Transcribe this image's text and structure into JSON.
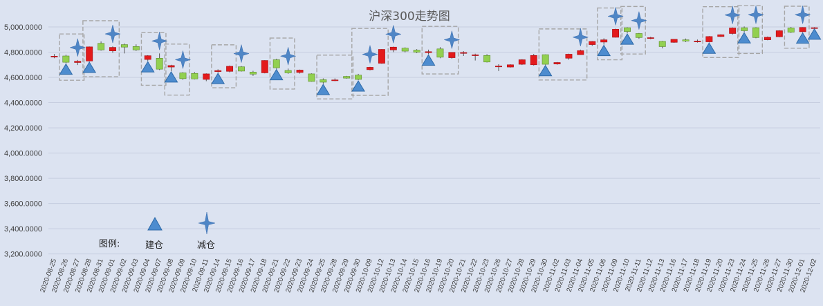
{
  "chart_data": {
    "type": "candlestick",
    "title": "沪深300走势图",
    "ylim": [
      3200,
      5050
    ],
    "yticks": [
      "5,000.0000",
      "4,800.0000",
      "4,600.0000",
      "4,400.0000",
      "4,200.0000",
      "4,000.0000",
      "3,800.0000",
      "3,600.0000",
      "3,400.0000",
      "3,200.0000"
    ],
    "ytick_values": [
      5000,
      4800,
      4600,
      4400,
      4200,
      4000,
      3800,
      3600,
      3400,
      3200
    ],
    "grid": true,
    "colors": {
      "up": "#e31a1c",
      "down": "#92d050",
      "up_edge": "#a50f15",
      "down_edge": "#5c8a2a",
      "marker": "#4d8ccf"
    },
    "categories": [
      "2020-08-25",
      "2020-08-26",
      "2020-08-27",
      "2020-08-28",
      "2020-08-31",
      "2020-09-01",
      "2020-09-02",
      "2020-09-03",
      "2020-09-04",
      "2020-09-07",
      "2020-09-08",
      "2020-09-09",
      "2020-09-10",
      "2020-09-11",
      "2020-09-14",
      "2020-09-15",
      "2020-09-16",
      "2020-09-17",
      "2020-09-18",
      "2020-09-21",
      "2020-09-22",
      "2020-09-23",
      "2020-09-24",
      "2020-09-25",
      "2020-09-28",
      "2020-09-29",
      "2020-09-30",
      "2020-10-09",
      "2020-10-12",
      "2020-10-13",
      "2020-10-14",
      "2020-10-15",
      "2020-10-16",
      "2020-10-19",
      "2020-10-20",
      "2020-10-21",
      "2020-10-22",
      "2020-10-23",
      "2020-10-26",
      "2020-10-27",
      "2020-10-28",
      "2020-10-29",
      "2020-10-30",
      "2020-11-02",
      "2020-11-03",
      "2020-11-04",
      "2020-11-05",
      "2020-11-06",
      "2020-11-09",
      "2020-11-10",
      "2020-11-11",
      "2020-11-12",
      "2020-11-13",
      "2020-11-16",
      "2020-11-17",
      "2020-11-18",
      "2020-11-19",
      "2020-11-20",
      "2020-11-23",
      "2020-11-24",
      "2020-11-25",
      "2020-11-26",
      "2020-11-27",
      "2020-11-30",
      "2020-12-01",
      "2020-12-02"
    ],
    "candles": [
      {
        "open": 4764,
        "close": 4768,
        "high": 4785,
        "low": 4752
      },
      {
        "open": 4770,
        "close": 4720,
        "high": 4780,
        "low": 4712
      },
      {
        "open": 4718,
        "close": 4728,
        "high": 4738,
        "low": 4698
      },
      {
        "open": 4730,
        "close": 4842,
        "high": 4845,
        "low": 4726
      },
      {
        "open": 4870,
        "close": 4818,
        "high": 4885,
        "low": 4812
      },
      {
        "open": 4810,
        "close": 4838,
        "high": 4846,
        "low": 4795
      },
      {
        "open": 4860,
        "close": 4840,
        "high": 4868,
        "low": 4790
      },
      {
        "open": 4845,
        "close": 4818,
        "high": 4862,
        "low": 4810
      },
      {
        "open": 4742,
        "close": 4772,
        "high": 4776,
        "low": 4730
      },
      {
        "open": 4752,
        "close": 4665,
        "high": 4790,
        "low": 4658
      },
      {
        "open": 4682,
        "close": 4694,
        "high": 4700,
        "low": 4650
      },
      {
        "open": 4636,
        "close": 4590,
        "high": 4642,
        "low": 4580
      },
      {
        "open": 4632,
        "close": 4588,
        "high": 4642,
        "low": 4584
      },
      {
        "open": 4584,
        "close": 4628,
        "high": 4632,
        "low": 4570
      },
      {
        "open": 4646,
        "close": 4654,
        "high": 4664,
        "low": 4638
      },
      {
        "open": 4648,
        "close": 4688,
        "high": 4694,
        "low": 4640
      },
      {
        "open": 4684,
        "close": 4650,
        "high": 4690,
        "low": 4646
      },
      {
        "open": 4642,
        "close": 4626,
        "high": 4652,
        "low": 4612
      },
      {
        "open": 4636,
        "close": 4734,
        "high": 4736,
        "low": 4632
      },
      {
        "open": 4740,
        "close": 4676,
        "high": 4748,
        "low": 4668
      },
      {
        "open": 4655,
        "close": 4636,
        "high": 4670,
        "low": 4628
      },
      {
        "open": 4639,
        "close": 4658,
        "high": 4662,
        "low": 4630
      },
      {
        "open": 4628,
        "close": 4568,
        "high": 4632,
        "low": 4566
      },
      {
        "open": 4582,
        "close": 4562,
        "high": 4592,
        "low": 4550
      },
      {
        "open": 4578,
        "close": 4580,
        "high": 4592,
        "low": 4570
      },
      {
        "open": 4608,
        "close": 4594,
        "high": 4612,
        "low": 4590
      },
      {
        "open": 4618,
        "close": 4584,
        "high": 4628,
        "low": 4578
      },
      {
        "open": 4661,
        "close": 4680,
        "high": 4684,
        "low": 4656
      },
      {
        "open": 4712,
        "close": 4822,
        "high": 4824,
        "low": 4708
      },
      {
        "open": 4818,
        "close": 4840,
        "high": 4844,
        "low": 4800
      },
      {
        "open": 4832,
        "close": 4808,
        "high": 4838,
        "low": 4798
      },
      {
        "open": 4816,
        "close": 4800,
        "high": 4824,
        "low": 4792
      },
      {
        "open": 4796,
        "close": 4804,
        "high": 4820,
        "low": 4784
      },
      {
        "open": 4826,
        "close": 4760,
        "high": 4840,
        "low": 4752
      },
      {
        "open": 4756,
        "close": 4798,
        "high": 4800,
        "low": 4748
      },
      {
        "open": 4795,
        "close": 4797,
        "high": 4808,
        "low": 4770
      },
      {
        "open": 4776,
        "close": 4779,
        "high": 4788,
        "low": 4734
      },
      {
        "open": 4774,
        "close": 4722,
        "high": 4784,
        "low": 4718
      },
      {
        "open": 4688,
        "close": 4690,
        "high": 4704,
        "low": 4650
      },
      {
        "open": 4682,
        "close": 4700,
        "high": 4704,
        "low": 4678
      },
      {
        "open": 4704,
        "close": 4740,
        "high": 4744,
        "low": 4698
      },
      {
        "open": 4700,
        "close": 4774,
        "high": 4786,
        "low": 4694
      },
      {
        "open": 4780,
        "close": 4704,
        "high": 4782,
        "low": 4700
      },
      {
        "open": 4706,
        "close": 4718,
        "high": 4722,
        "low": 4700
      },
      {
        "open": 4752,
        "close": 4784,
        "high": 4788,
        "low": 4740
      },
      {
        "open": 4780,
        "close": 4812,
        "high": 4820,
        "low": 4778
      },
      {
        "open": 4860,
        "close": 4885,
        "high": 4888,
        "low": 4850
      },
      {
        "open": 4880,
        "close": 4898,
        "high": 4910,
        "low": 4860
      },
      {
        "open": 4918,
        "close": 4982,
        "high": 4986,
        "low": 4916
      },
      {
        "open": 4994,
        "close": 4964,
        "high": 4998,
        "low": 4950
      },
      {
        "open": 4948,
        "close": 4916,
        "high": 4952,
        "low": 4906
      },
      {
        "open": 4912,
        "close": 4915,
        "high": 4922,
        "low": 4902
      },
      {
        "open": 4886,
        "close": 4844,
        "high": 4890,
        "low": 4830
      },
      {
        "open": 4878,
        "close": 4902,
        "high": 4904,
        "low": 4874
      },
      {
        "open": 4898,
        "close": 4888,
        "high": 4908,
        "low": 4880
      },
      {
        "open": 4886,
        "close": 4888,
        "high": 4900,
        "low": 4876
      },
      {
        "open": 4882,
        "close": 4924,
        "high": 4928,
        "low": 4878
      },
      {
        "open": 4924,
        "close": 4938,
        "high": 4942,
        "low": 4920
      },
      {
        "open": 4948,
        "close": 4992,
        "high": 4996,
        "low": 4940
      },
      {
        "open": 4994,
        "close": 4970,
        "high": 5004,
        "low": 4960
      },
      {
        "open": 4994,
        "close": 4916,
        "high": 4998,
        "low": 4910
      },
      {
        "open": 4898,
        "close": 4918,
        "high": 4924,
        "low": 4894
      },
      {
        "open": 4922,
        "close": 4970,
        "high": 4974,
        "low": 4918
      },
      {
        "open": 4992,
        "close": 4958,
        "high": 5000,
        "low": 4952
      },
      {
        "open": 4962,
        "close": 4996,
        "high": 4998,
        "low": 4958
      },
      {
        "open": 4994,
        "close": 4994,
        "high": 4998,
        "low": 4990
      }
    ],
    "build_markers": [
      1,
      3,
      8,
      10,
      14,
      19,
      23,
      26,
      32,
      42,
      47,
      49,
      56,
      59,
      64,
      65
    ],
    "reduce_markers": [
      2,
      5,
      9,
      11,
      16,
      20,
      27,
      29,
      34,
      45,
      48,
      50,
      58,
      60,
      64
    ],
    "boxes": [
      [
        1,
        2
      ],
      [
        3,
        5
      ],
      [
        8,
        9
      ],
      [
        10,
        11
      ],
      [
        14,
        15
      ],
      [
        19,
        20
      ],
      [
        23,
        25
      ],
      [
        26,
        28
      ],
      [
        32,
        34
      ],
      [
        42,
        45
      ],
      [
        47,
        48
      ],
      [
        49,
        50
      ],
      [
        56,
        58
      ],
      [
        59,
        60
      ],
      [
        63,
        64
      ]
    ]
  },
  "legend": {
    "label": "图例:",
    "build_label": "建仓",
    "reduce_label": "减仓"
  }
}
